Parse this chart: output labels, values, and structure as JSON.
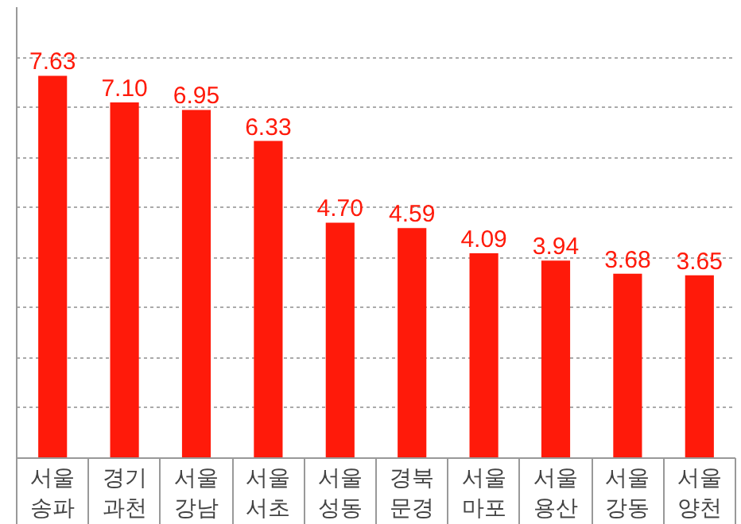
{
  "chart_data": {
    "type": "bar",
    "categories": [
      "서울\n송파",
      "경기\n과천",
      "서울\n강남",
      "서울\n서초",
      "서울\n성동",
      "경북\n문경",
      "서울\n마포",
      "서울\n용산",
      "서울\n강동",
      "서울\n양천"
    ],
    "values": [
      7.63,
      7.1,
      6.95,
      6.33,
      4.7,
      4.59,
      4.09,
      3.94,
      3.68,
      3.65
    ],
    "color": "#ff1a0a",
    "value_labels": [
      "7.63",
      "7.10",
      "6.95",
      "6.33",
      "4.70",
      "4.59",
      "4.09",
      "3.94",
      "3.68",
      "3.65"
    ],
    "ylim": [
      0,
      9
    ],
    "yticks": [
      {
        "value": 0,
        "label": null
      },
      {
        "value": 1,
        "label": null
      },
      {
        "value": 2,
        "label": null
      },
      {
        "value": 3,
        "label": null
      },
      {
        "value": 4,
        "label": null
      },
      {
        "value": 5,
        "label": null
      },
      {
        "value": 6,
        "label": null
      },
      {
        "value": 7,
        "label": null
      },
      {
        "value": 8,
        "label": null
      }
    ],
    "grid": "y",
    "tick_labels": "x"
  }
}
